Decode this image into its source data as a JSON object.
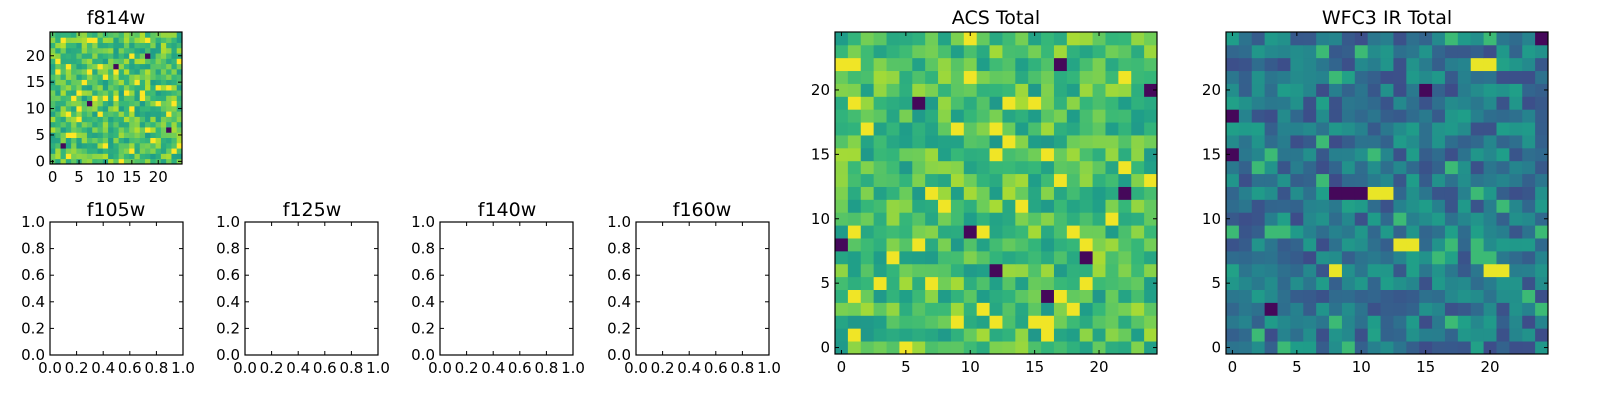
{
  "chart_data": [
    {
      "id": "f814w",
      "type": "heatmap",
      "title": "f814w",
      "xlim": [
        -0.5,
        24.5
      ],
      "ylim": [
        -0.5,
        24.5
      ],
      "xticks": [
        0,
        5,
        10,
        15,
        20
      ],
      "yticks": [
        0,
        5,
        10,
        15,
        20
      ],
      "xtick_labels": [
        "0",
        "5",
        "10",
        "15",
        "20"
      ],
      "ytick_labels": [
        "0",
        "5",
        "10",
        "15",
        "20"
      ],
      "grid_size": 25,
      "colormap": "viridis",
      "seed": 814,
      "bias": 0.72,
      "outliers": [
        [
          2,
          3
        ],
        [
          7,
          11
        ],
        [
          12,
          18
        ],
        [
          22,
          6
        ],
        [
          18,
          20
        ]
      ]
    },
    {
      "id": "f105w",
      "type": "empty",
      "title": "f105w",
      "xlim": [
        0,
        1
      ],
      "ylim": [
        0,
        1
      ],
      "xticks": [
        0,
        0.2,
        0.4,
        0.6,
        0.8,
        1.0
      ],
      "yticks": [
        0,
        0.2,
        0.4,
        0.6,
        0.8,
        1.0
      ],
      "xtick_labels": [
        "0.0",
        "0.2",
        "0.4",
        "0.6",
        "0.8",
        "1.0"
      ],
      "ytick_labels": [
        "0.0",
        "0.2",
        "0.4",
        "0.6",
        "0.8",
        "1.0"
      ]
    },
    {
      "id": "f125w",
      "type": "empty",
      "title": "f125w",
      "xlim": [
        0,
        1
      ],
      "ylim": [
        0,
        1
      ],
      "xticks": [
        0,
        0.2,
        0.4,
        0.6,
        0.8,
        1.0
      ],
      "yticks": [
        0,
        0.2,
        0.4,
        0.6,
        0.8,
        1.0
      ],
      "xtick_labels": [
        "0.0",
        "0.2",
        "0.4",
        "0.6",
        "0.8",
        "1.0"
      ],
      "ytick_labels": [
        "0.0",
        "0.2",
        "0.4",
        "0.6",
        "0.8",
        "1.0"
      ]
    },
    {
      "id": "f140w",
      "type": "empty",
      "title": "f140w",
      "xlim": [
        0,
        1
      ],
      "ylim": [
        0,
        1
      ],
      "xticks": [
        0,
        0.2,
        0.4,
        0.6,
        0.8,
        1.0
      ],
      "yticks": [
        0,
        0.2,
        0.4,
        0.6,
        0.8,
        1.0
      ],
      "xtick_labels": [
        "0.0",
        "0.2",
        "0.4",
        "0.6",
        "0.8",
        "1.0"
      ],
      "ytick_labels": [
        "0.0",
        "0.2",
        "0.4",
        "0.6",
        "0.8",
        "1.0"
      ]
    },
    {
      "id": "f160w",
      "type": "empty",
      "title": "f160w",
      "xlim": [
        0,
        1
      ],
      "ylim": [
        0,
        1
      ],
      "xticks": [
        0,
        0.2,
        0.4,
        0.6,
        0.8,
        1.0
      ],
      "yticks": [
        0,
        0.2,
        0.4,
        0.6,
        0.8,
        1.0
      ],
      "xtick_labels": [
        "0.0",
        "0.2",
        "0.4",
        "0.6",
        "0.8",
        "1.0"
      ],
      "ytick_labels": [
        "0.0",
        "0.2",
        "0.4",
        "0.6",
        "0.8",
        "1.0"
      ]
    },
    {
      "id": "acs-total",
      "type": "heatmap",
      "title": "ACS Total",
      "xlim": [
        -0.5,
        24.5
      ],
      "ylim": [
        -0.5,
        24.5
      ],
      "xticks": [
        0,
        5,
        10,
        15,
        20
      ],
      "yticks": [
        0,
        5,
        10,
        15,
        20
      ],
      "xtick_labels": [
        "0",
        "5",
        "10",
        "15",
        "20"
      ],
      "ytick_labels": [
        "0",
        "5",
        "10",
        "15",
        "20"
      ],
      "grid_size": 25,
      "colormap": "viridis",
      "seed": 2017,
      "bias": 0.7,
      "outliers": [
        [
          24,
          20
        ],
        [
          6,
          19
        ],
        [
          19,
          7
        ],
        [
          10,
          9
        ],
        [
          16,
          4
        ],
        [
          12,
          6
        ],
        [
          0,
          8
        ],
        [
          17,
          22
        ],
        [
          22,
          12
        ]
      ]
    },
    {
      "id": "wfc3-ir-total",
      "type": "heatmap",
      "title": "WFC3 IR Total",
      "xlim": [
        -0.5,
        24.5
      ],
      "ylim": [
        -0.5,
        24.5
      ],
      "xticks": [
        0,
        5,
        10,
        15,
        20
      ],
      "yticks": [
        0,
        5,
        10,
        15,
        20
      ],
      "xtick_labels": [
        "0",
        "5",
        "10",
        "15",
        "20"
      ],
      "ytick_labels": [
        "0",
        "5",
        "10",
        "15",
        "20"
      ],
      "grid_size": 25,
      "colormap": "viridis",
      "seed": 3141,
      "bias": 0.4,
      "hotspots": [
        [
          19,
          22
        ],
        [
          20,
          22
        ],
        [
          11,
          12
        ],
        [
          12,
          12
        ],
        [
          13,
          8
        ],
        [
          14,
          8
        ],
        [
          20,
          6
        ],
        [
          21,
          6
        ],
        [
          8,
          6
        ]
      ],
      "outliers": [
        [
          8,
          12
        ],
        [
          9,
          12
        ],
        [
          10,
          12
        ],
        [
          0,
          18
        ],
        [
          0,
          15
        ],
        [
          24,
          24
        ],
        [
          3,
          3
        ],
        [
          15,
          20
        ]
      ]
    }
  ]
}
